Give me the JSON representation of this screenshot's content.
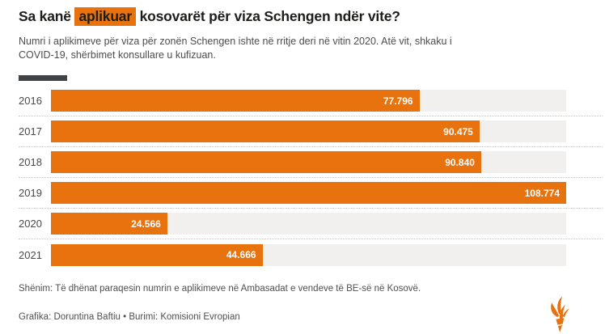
{
  "header": {
    "title_prefix": "Sa kanë",
    "title_highlight": "aplikuar",
    "title_suffix": "kosovarët për viza Schengen ndër vite?",
    "subtitle_lines": [
      "Numri i aplikimeve për viza për zonën Schengen ishte në rritje deri në vitin 2020. Atë vit, shkaku i",
      "COVID-19, shërbimet konsullare u kufizuan."
    ]
  },
  "chart_data": {
    "type": "bar",
    "orientation": "horizontal",
    "title": "Sa kanë aplikuar kosovarët për viza Schengen ndër vite?",
    "xlabel": "",
    "ylabel": "",
    "categories": [
      "2016",
      "2017",
      "2018",
      "2019",
      "2020",
      "2021"
    ],
    "values": [
      77796,
      90475,
      90840,
      108774,
      24566,
      44666
    ],
    "value_labels": [
      "77.796",
      "90.475",
      "90.840",
      "108.774",
      "24.566",
      "44.666"
    ],
    "xlim": [
      0,
      108774
    ],
    "legend": "none",
    "grid": "dotted row separators",
    "bar_color": "#e8720e",
    "track_color": "#f1f0ee",
    "value_label_color": "#ffffff"
  },
  "footer": {
    "note": "Shënim: Të dhënat paraqesin numrin e aplikimeve në Ambasadat e vendeve të BE-së në Kosovë.",
    "credits": "Grafika: Doruntina Baftiu • Burimi: Komisioni Evropian",
    "logo": "rferl-torch-icon"
  },
  "colors": {
    "accent_orange": "#e8720e",
    "title_text": "#1d1d1b",
    "body_text": "#4d4d4d",
    "divider_dark": "#3e4347",
    "track_gray": "#f1f0ee",
    "separator_dotted": "#c9c9c9"
  }
}
